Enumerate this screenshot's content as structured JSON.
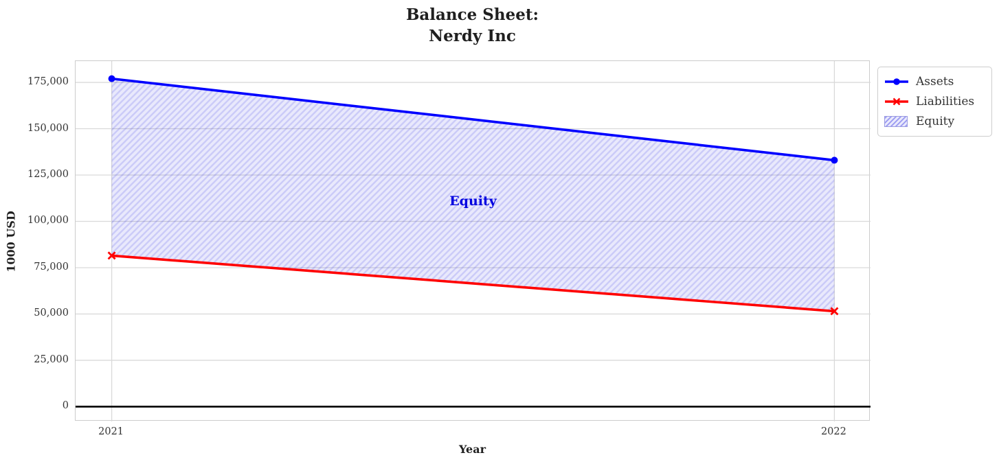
{
  "chart_data": {
    "type": "line",
    "title": "Balance Sheet:\nNerdy Inc",
    "xlabel": "Year",
    "ylabel": "1000 USD",
    "categories": [
      "2021",
      "2022"
    ],
    "x": [
      2021,
      2022
    ],
    "series": [
      {
        "name": "Assets",
        "values": [
          177000,
          133000
        ],
        "color": "#0000ff",
        "marker": "circle"
      },
      {
        "name": "Liabilities",
        "values": [
          81500,
          51500
        ],
        "color": "#ff0000",
        "marker": "x"
      }
    ],
    "fill_between": {
      "name": "Equity",
      "upper_series": "Assets",
      "lower_series": "Liabilities",
      "fill_color": "#0000dd",
      "hatch": "//",
      "annotation": {
        "text": "Equity",
        "x": 2021.5,
        "y": 111000,
        "color": "#0000e0"
      }
    },
    "xlim": [
      2020.95,
      2022.05
    ],
    "ylim": [
      -8000,
      186500
    ],
    "yticks": [
      0,
      25000,
      50000,
      75000,
      100000,
      125000,
      150000,
      175000
    ],
    "ytick_labels": [
      "0",
      "25,000",
      "50,000",
      "75,000",
      "100,000",
      "125,000",
      "150,000",
      "175,000"
    ],
    "grid": true,
    "grid_color": "#d9d9d9",
    "zero_line": true,
    "zero_line_color": "#000000",
    "legend": {
      "position": "upper right outside",
      "entries": [
        "Assets",
        "Liabilities",
        "Equity"
      ]
    }
  }
}
